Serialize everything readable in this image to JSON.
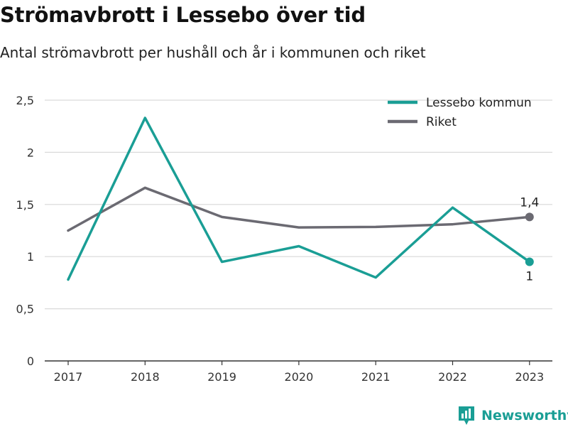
{
  "title": "Strömavbrott i Lessebo över tid",
  "subtitle": "Antal strömavbrott per hushåll och år i kommunen och riket",
  "brand": {
    "name": "Newsworthy",
    "logo_icon": "bar-chart-logo-icon",
    "color": "#1a9e95"
  },
  "chart_data": {
    "type": "line",
    "categories": [
      "2017",
      "2018",
      "2019",
      "2020",
      "2021",
      "2022",
      "2023"
    ],
    "ylim": [
      0,
      2.5
    ],
    "yticks": [
      {
        "value": 0,
        "label": "0"
      },
      {
        "value": 0.5,
        "label": "0,5"
      },
      {
        "value": 1,
        "label": "1"
      },
      {
        "value": 1.5,
        "label": "1,5"
      },
      {
        "value": 2,
        "label": "2"
      },
      {
        "value": 2.5,
        "label": "2,5"
      }
    ],
    "grid": true,
    "legend_position": "top-right",
    "series": [
      {
        "name": "Lessebo kommun",
        "color": "#1a9e95",
        "values": [
          0.78,
          2.33,
          0.95,
          1.1,
          0.8,
          1.47,
          0.95
        ],
        "end_label": "1"
      },
      {
        "name": "Riket",
        "color": "#6b6a72",
        "values": [
          1.25,
          1.66,
          1.38,
          1.28,
          1.285,
          1.31,
          1.38
        ],
        "end_label": "1,4"
      }
    ]
  }
}
